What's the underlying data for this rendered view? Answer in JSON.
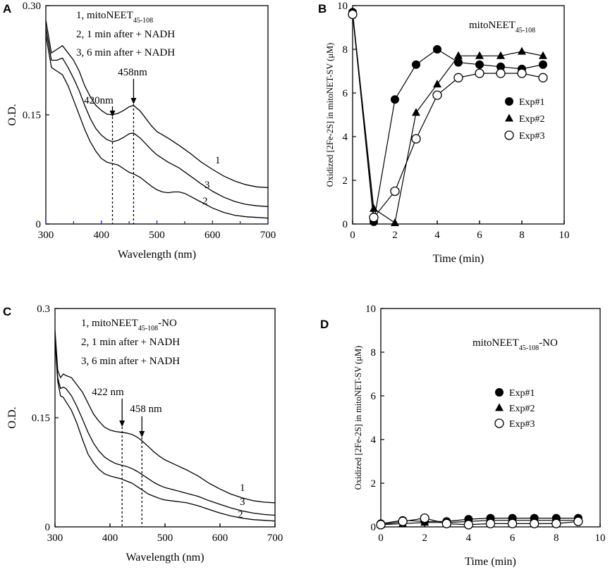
{
  "panel_labels": [
    "A",
    "B",
    "C",
    "D"
  ],
  "colors": {
    "ink": "#000000",
    "tick_blue": "#1f2fbf",
    "background": "#ffffff"
  },
  "chart_data": [
    {
      "panel": "A",
      "type": "line",
      "xlabel": "Wavelength (nm)",
      "ylabel": "O.D.",
      "xlim": [
        300,
        700
      ],
      "ylim": [
        0,
        0.3
      ],
      "xticks": [
        "300",
        "400",
        "500",
        "600",
        "700"
      ],
      "yticks": [
        "0",
        "0.15",
        "0.30"
      ],
      "legend_lines": [
        {
          "prefix": "1, mitoNEET",
          "sub": "45-108",
          "suffix": ""
        },
        {
          "prefix": "2, 1 min after + NADH",
          "sub": "",
          "suffix": ""
        },
        {
          "prefix": "3, 6 min after + NADH",
          "sub": "",
          "suffix": ""
        }
      ],
      "curve_labels": [
        "1",
        "3",
        "2"
      ],
      "annotations": [
        {
          "text": "420nm",
          "x": 420
        },
        {
          "text": "458nm",
          "x": 458
        }
      ],
      "series": [
        {
          "name": "1",
          "x": [
            300,
            310,
            320,
            330,
            340,
            350,
            360,
            370,
            380,
            390,
            400,
            410,
            420,
            430,
            440,
            450,
            458,
            470,
            480,
            490,
            500,
            520,
            540,
            560,
            580,
            600,
            620,
            640,
            660,
            680,
            700
          ],
          "y": [
            0.28,
            0.235,
            0.24,
            0.245,
            0.235,
            0.225,
            0.21,
            0.19,
            0.175,
            0.163,
            0.156,
            0.151,
            0.15,
            0.152,
            0.156,
            0.161,
            0.163,
            0.155,
            0.145,
            0.135,
            0.127,
            0.118,
            0.108,
            0.097,
            0.085,
            0.075,
            0.066,
            0.059,
            0.054,
            0.051,
            0.05
          ]
        },
        {
          "name": "3",
          "x": [
            300,
            310,
            320,
            330,
            340,
            350,
            360,
            370,
            380,
            390,
            400,
            410,
            420,
            430,
            440,
            450,
            458,
            470,
            480,
            490,
            500,
            520,
            540,
            560,
            580,
            600,
            620,
            640,
            660,
            680,
            700
          ],
          "y": [
            0.27,
            0.225,
            0.225,
            0.228,
            0.215,
            0.2,
            0.183,
            0.163,
            0.145,
            0.131,
            0.122,
            0.116,
            0.113,
            0.115,
            0.119,
            0.124,
            0.125,
            0.118,
            0.11,
            0.102,
            0.095,
            0.085,
            0.077,
            0.066,
            0.055,
            0.045,
            0.037,
            0.031,
            0.027,
            0.025,
            0.024
          ]
        },
        {
          "name": "2",
          "x": [
            300,
            310,
            320,
            330,
            340,
            350,
            360,
            370,
            380,
            390,
            400,
            410,
            420,
            430,
            440,
            450,
            460,
            470,
            480,
            490,
            500,
            510,
            520,
            530,
            540,
            550,
            560,
            580,
            600,
            620,
            640,
            660,
            680,
            700
          ],
          "y": [
            0.26,
            0.215,
            0.21,
            0.205,
            0.19,
            0.17,
            0.15,
            0.13,
            0.113,
            0.1,
            0.09,
            0.085,
            0.083,
            0.081,
            0.076,
            0.071,
            0.068,
            0.064,
            0.058,
            0.052,
            0.047,
            0.044,
            0.043,
            0.044,
            0.044,
            0.042,
            0.038,
            0.03,
            0.022,
            0.016,
            0.012,
            0.01,
            0.009,
            0.008
          ]
        }
      ]
    },
    {
      "panel": "B",
      "type": "line",
      "title": {
        "prefix": "mitoNEET",
        "sub": "45-108",
        "suffix": ""
      },
      "xlabel": "Time (min)",
      "ylabel": "Oxidized [2Fe-2S] in mitoNET-SV (μM)",
      "xlim": [
        0,
        10
      ],
      "ylim": [
        0,
        10
      ],
      "xticks": [
        "0",
        "2",
        "4",
        "6",
        "8",
        "10"
      ],
      "yticks": [
        "0",
        "2",
        "4",
        "6",
        "8",
        "10"
      ],
      "series": [
        {
          "name": "Exp#1",
          "marker": "filled-circle",
          "x": [
            0,
            1,
            2,
            3,
            4,
            5,
            6,
            7,
            8,
            9
          ],
          "y": [
            9.7,
            0.1,
            5.7,
            7.3,
            8.0,
            7.4,
            7.3,
            7.2,
            7.1,
            7.3
          ]
        },
        {
          "name": "Exp#2",
          "marker": "filled-triangle",
          "x": [
            0,
            1,
            2,
            3,
            4,
            5,
            6,
            7,
            8,
            9
          ],
          "y": [
            9.7,
            0.7,
            0.05,
            5.1,
            6.4,
            7.7,
            7.7,
            7.7,
            7.9,
            7.7
          ]
        },
        {
          "name": "Exp#3",
          "marker": "open-circle",
          "x": [
            0,
            1,
            2,
            3,
            4,
            5,
            6,
            7,
            8,
            9
          ],
          "y": [
            9.6,
            0.3,
            1.5,
            3.9,
            5.9,
            6.7,
            6.9,
            6.9,
            6.9,
            6.7
          ]
        }
      ]
    },
    {
      "panel": "C",
      "type": "line",
      "xlabel": "Wavelength (nm)",
      "ylabel": "O.D.",
      "xlim": [
        300,
        700
      ],
      "ylim": [
        0,
        0.3
      ],
      "xticks": [
        "300",
        "400",
        "500",
        "600",
        "700"
      ],
      "yticks": [
        "0",
        "0.15",
        "0.3"
      ],
      "legend_lines": [
        {
          "prefix": "1, mitoNEET",
          "sub": "45-108",
          "suffix": "-NO"
        },
        {
          "prefix": "2, 1 min after + NADH",
          "sub": "",
          "suffix": ""
        },
        {
          "prefix": "3, 6 min after + NADH",
          "sub": "",
          "suffix": ""
        }
      ],
      "curve_labels": [
        "1",
        "3",
        "2"
      ],
      "annotations": [
        {
          "text": "422 nm",
          "x": 422
        },
        {
          "text": "458 nm",
          "x": 458
        }
      ],
      "series": [
        {
          "name": "1",
          "x": [
            300,
            305,
            310,
            315,
            320,
            330,
            340,
            350,
            360,
            370,
            380,
            390,
            400,
            410,
            420,
            430,
            440,
            450,
            460,
            470,
            480,
            490,
            500,
            520,
            540,
            560,
            580,
            600,
            620,
            640,
            660,
            680,
            700
          ],
          "y": [
            0.27,
            0.215,
            0.205,
            0.21,
            0.208,
            0.205,
            0.195,
            0.185,
            0.17,
            0.155,
            0.145,
            0.137,
            0.133,
            0.131,
            0.13,
            0.129,
            0.127,
            0.123,
            0.117,
            0.11,
            0.103,
            0.097,
            0.092,
            0.085,
            0.078,
            0.07,
            0.06,
            0.052,
            0.045,
            0.04,
            0.036,
            0.034,
            0.033
          ]
        },
        {
          "name": "3",
          "x": [
            300,
            305,
            310,
            315,
            320,
            330,
            340,
            350,
            360,
            370,
            380,
            390,
            400,
            410,
            420,
            430,
            440,
            450,
            460,
            470,
            480,
            490,
            500,
            520,
            540,
            560,
            580,
            600,
            620,
            640,
            660,
            680,
            700
          ],
          "y": [
            0.26,
            0.205,
            0.19,
            0.192,
            0.19,
            0.18,
            0.165,
            0.148,
            0.13,
            0.115,
            0.104,
            0.096,
            0.091,
            0.087,
            0.085,
            0.083,
            0.08,
            0.076,
            0.071,
            0.066,
            0.061,
            0.057,
            0.054,
            0.05,
            0.046,
            0.042,
            0.036,
            0.031,
            0.026,
            0.022,
            0.019,
            0.017,
            0.016
          ]
        },
        {
          "name": "2",
          "x": [
            300,
            305,
            310,
            315,
            320,
            330,
            340,
            350,
            360,
            370,
            380,
            390,
            400,
            410,
            420,
            430,
            440,
            450,
            460,
            470,
            480,
            490,
            500,
            520,
            540,
            560,
            580,
            600,
            620,
            640,
            660,
            680,
            700
          ],
          "y": [
            0.255,
            0.2,
            0.18,
            0.178,
            0.172,
            0.16,
            0.142,
            0.12,
            0.1,
            0.088,
            0.079,
            0.073,
            0.07,
            0.068,
            0.066,
            0.063,
            0.06,
            0.055,
            0.05,
            0.045,
            0.042,
            0.039,
            0.037,
            0.035,
            0.033,
            0.029,
            0.024,
            0.019,
            0.015,
            0.012,
            0.01,
            0.009,
            0.008
          ]
        }
      ]
    },
    {
      "panel": "D",
      "type": "line",
      "title": {
        "prefix": "mitoNEET",
        "sub": "45-108",
        "suffix": "-NO"
      },
      "xlabel": "Time (min)",
      "ylabel": "Oxidized [2Fe-2S] in mitoNET-SV (μM)",
      "xlim": [
        0,
        10
      ],
      "ylim": [
        0,
        10
      ],
      "xticks": [
        "0",
        "2",
        "4",
        "6",
        "8",
        "10"
      ],
      "yticks": [
        "0",
        "2",
        "4",
        "6",
        "8",
        "10"
      ],
      "series": [
        {
          "name": "Exp#1",
          "marker": "filled-circle",
          "x": [
            0,
            1,
            2,
            3,
            4,
            5,
            6,
            7,
            8,
            9
          ],
          "y": [
            0.15,
            0.3,
            0.25,
            0.25,
            0.35,
            0.4,
            0.4,
            0.4,
            0.4,
            0.4
          ]
        },
        {
          "name": "Exp#2",
          "marker": "filled-triangle",
          "x": [
            0,
            1,
            2,
            3,
            4,
            5,
            6,
            7,
            8,
            9
          ],
          "y": [
            0.1,
            0.15,
            0.2,
            0.2,
            0.25,
            0.3,
            0.3,
            0.3,
            0.3,
            0.3
          ]
        },
        {
          "name": "Exp#3",
          "marker": "open-circle",
          "x": [
            0,
            1,
            2,
            3,
            4,
            5,
            6,
            7,
            8,
            9
          ],
          "y": [
            0.1,
            0.25,
            0.4,
            0.15,
            0.1,
            0.15,
            0.15,
            0.15,
            0.15,
            0.25
          ]
        }
      ]
    }
  ]
}
